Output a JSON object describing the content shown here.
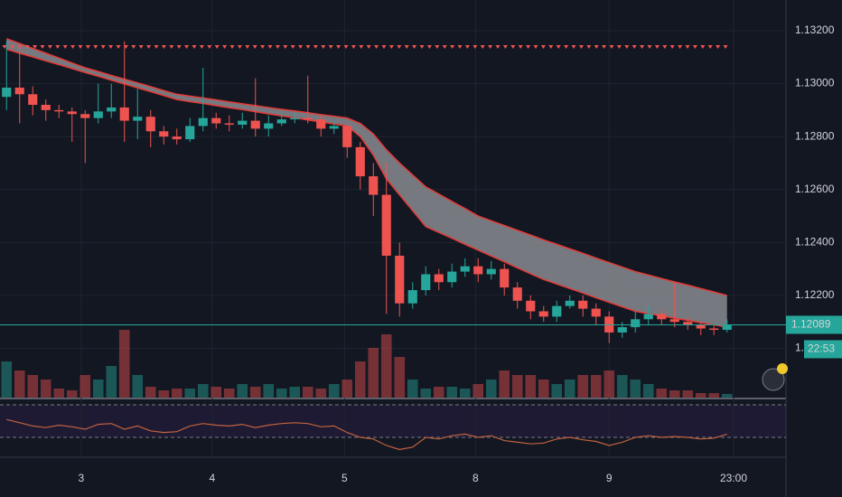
{
  "chart_data": {
    "type": "candlestick",
    "xlim": [
      -0.5,
      59.5
    ],
    "xticks": [
      {
        "value": 5.7,
        "label": "3"
      },
      {
        "value": 15.7,
        "label": "4"
      },
      {
        "value": 25.8,
        "label": "5"
      },
      {
        "value": 35.8,
        "label": "8"
      },
      {
        "value": 46.0,
        "label": "9"
      },
      {
        "value": 55.5,
        "label": "23:00"
      }
    ],
    "ylim": [
      1.11814,
      1.13316
    ],
    "yticks": [
      {
        "value": 1.132,
        "label": "1.13200"
      },
      {
        "value": 1.13,
        "label": "1.13000"
      },
      {
        "value": 1.128,
        "label": "1.12800"
      },
      {
        "value": 1.126,
        "label": "1.12600"
      },
      {
        "value": 1.124,
        "label": "1.12400"
      },
      {
        "value": 1.122,
        "label": "1.12200"
      },
      {
        "value": 1.12,
        "label": "1.12000"
      }
    ],
    "grid": true,
    "up_color": "#26a69a",
    "down_color": "#ef5350",
    "open": [
      1.1295,
      1.12985,
      1.1296,
      1.1292,
      1.129,
      1.12895,
      1.12885,
      1.1287,
      1.12895,
      1.1291,
      1.1286,
      1.12875,
      1.1282,
      1.128,
      1.1279,
      1.1284,
      1.1287,
      1.1285,
      1.12845,
      1.1286,
      1.1283,
      1.1285,
      1.12865,
      1.1287,
      1.12865,
      1.1283,
      1.1284,
      1.1276,
      1.1265,
      1.1258,
      1.1235,
      1.1217,
      1.1222,
      1.1228,
      1.1225,
      1.1229,
      1.1231,
      1.1228,
      1.123,
      1.1223,
      1.1218,
      1.1214,
      1.1212,
      1.1216,
      1.1218,
      1.1215,
      1.1212,
      1.1206,
      1.1208,
      1.1211,
      1.1213,
      1.1211,
      1.121,
      1.1209,
      1.12075,
      1.1207
    ],
    "high": [
      1.1316,
      1.1315,
      1.1299,
      1.1294,
      1.1292,
      1.1291,
      1.129,
      1.13,
      1.13,
      1.1316,
      1.1298,
      1.129,
      1.1284,
      1.1283,
      1.1287,
      1.1306,
      1.1289,
      1.1288,
      1.1289,
      1.1302,
      1.1288,
      1.1289,
      1.1289,
      1.1303,
      1.1288,
      1.1286,
      1.1285,
      1.1278,
      1.127,
      1.127,
      1.124,
      1.1225,
      1.1231,
      1.123,
      1.1232,
      1.1234,
      1.1234,
      1.1233,
      1.1232,
      1.1225,
      1.122,
      1.1216,
      1.1218,
      1.122,
      1.122,
      1.1217,
      1.1214,
      1.121,
      1.1214,
      1.1216,
      1.1215,
      1.1225,
      1.1212,
      1.121,
      1.1209,
      1.1211
    ],
    "low": [
      1.129,
      1.1285,
      1.1288,
      1.1286,
      1.1287,
      1.1278,
      1.127,
      1.1285,
      1.1287,
      1.1278,
      1.1279,
      1.1276,
      1.1277,
      1.1277,
      1.1278,
      1.1282,
      1.1283,
      1.1282,
      1.1283,
      1.128,
      1.128,
      1.1284,
      1.1285,
      1.1285,
      1.128,
      1.1281,
      1.1272,
      1.126,
      1.125,
      1.1213,
      1.1212,
      1.1215,
      1.122,
      1.1222,
      1.1223,
      1.1227,
      1.1225,
      1.1226,
      1.122,
      1.1215,
      1.1211,
      1.121,
      1.121,
      1.1215,
      1.1212,
      1.1209,
      1.1202,
      1.1204,
      1.1206,
      1.1209,
      1.1209,
      1.1208,
      1.1207,
      1.1205,
      1.1205,
      1.1206
    ],
    "close": [
      1.12985,
      1.1296,
      1.1292,
      1.129,
      1.12895,
      1.12885,
      1.1287,
      1.12895,
      1.1291,
      1.1286,
      1.12875,
      1.1282,
      1.128,
      1.1279,
      1.1284,
      1.1287,
      1.1285,
      1.12845,
      1.1286,
      1.1283,
      1.1285,
      1.12865,
      1.1287,
      1.12865,
      1.1283,
      1.1284,
      1.1276,
      1.1265,
      1.1258,
      1.1235,
      1.1217,
      1.1222,
      1.1228,
      1.1225,
      1.1229,
      1.1231,
      1.1228,
      1.123,
      1.1223,
      1.1218,
      1.1214,
      1.1212,
      1.1216,
      1.1218,
      1.1215,
      1.1212,
      1.1206,
      1.1208,
      1.1211,
      1.1213,
      1.1211,
      1.121,
      1.1209,
      1.12075,
      1.1207,
      1.12089
    ],
    "band_color": "#e53935",
    "band_upper": [
      1.1317,
      1.13152,
      1.13133,
      1.13115,
      1.13097,
      1.13078,
      1.1306,
      1.13046,
      1.13031,
      1.13017,
      1.13003,
      1.12989,
      1.12974,
      1.1296,
      1.12953,
      1.12946,
      1.12939,
      1.12931,
      1.12924,
      1.12917,
      1.1291,
      1.12903,
      1.12897,
      1.1289,
      1.12883,
      1.12877,
      1.1287,
      1.1285,
      1.1281,
      1.1275,
      1.127,
      1.12655,
      1.1261,
      1.12583,
      1.12555,
      1.12528,
      1.125,
      1.12482,
      1.12464,
      1.12446,
      1.12428,
      1.1241,
      1.12393,
      1.12376,
      1.12359,
      1.12341,
      1.12324,
      1.12307,
      1.1229,
      1.12277,
      1.12264,
      1.12251,
      1.12239,
      1.12226,
      1.12213,
      1.122
    ],
    "band_lower": [
      1.1313,
      1.13115,
      1.13101,
      1.13086,
      1.13072,
      1.13057,
      1.13042,
      1.13028,
      1.13013,
      1.12999,
      1.12984,
      1.1297,
      1.12955,
      1.1294,
      1.12932,
      1.12925,
      1.12917,
      1.12909,
      1.12902,
      1.12894,
      1.12886,
      1.12878,
      1.12871,
      1.12863,
      1.12855,
      1.12848,
      1.1284,
      1.128,
      1.1273,
      1.1264,
      1.1258,
      1.1252,
      1.1246,
      1.12438,
      1.12416,
      1.12393,
      1.12371,
      1.12349,
      1.12327,
      1.12304,
      1.12282,
      1.1226,
      1.12243,
      1.12226,
      1.12209,
      1.12191,
      1.12174,
      1.12157,
      1.1214,
      1.12131,
      1.12123,
      1.12114,
      1.12106,
      1.12097,
      1.12089,
      1.1208
    ],
    "volume": [
      40,
      30,
      25,
      20,
      10,
      8,
      25,
      20,
      35,
      75,
      25,
      12,
      8,
      10,
      10,
      15,
      12,
      10,
      15,
      12,
      15,
      10,
      12,
      12,
      10,
      15,
      20,
      40,
      55,
      70,
      45,
      20,
      10,
      12,
      12,
      10,
      15,
      20,
      30,
      25,
      25,
      20,
      15,
      20,
      25,
      25,
      30,
      25,
      20,
      15,
      10,
      8,
      8,
      5,
      5,
      4
    ],
    "rsi": [
      52,
      48,
      44,
      42,
      45,
      43,
      40,
      46,
      47,
      40,
      44,
      38,
      36,
      37,
      44,
      47,
      45,
      44,
      46,
      42,
      45,
      47,
      48,
      47,
      43,
      44,
      36,
      30,
      28,
      20,
      15,
      18,
      30,
      28,
      32,
      34,
      30,
      32,
      26,
      24,
      22,
      23,
      28,
      30,
      27,
      25,
      20,
      24,
      30,
      32,
      30,
      31,
      30,
      28,
      29,
      34
    ],
    "rsi_color": "#c1623f",
    "rsi_bands": [
      30,
      70
    ],
    "last_price": {
      "value": 1.12089,
      "label": "1.12089"
    },
    "countdown": "22:53"
  }
}
